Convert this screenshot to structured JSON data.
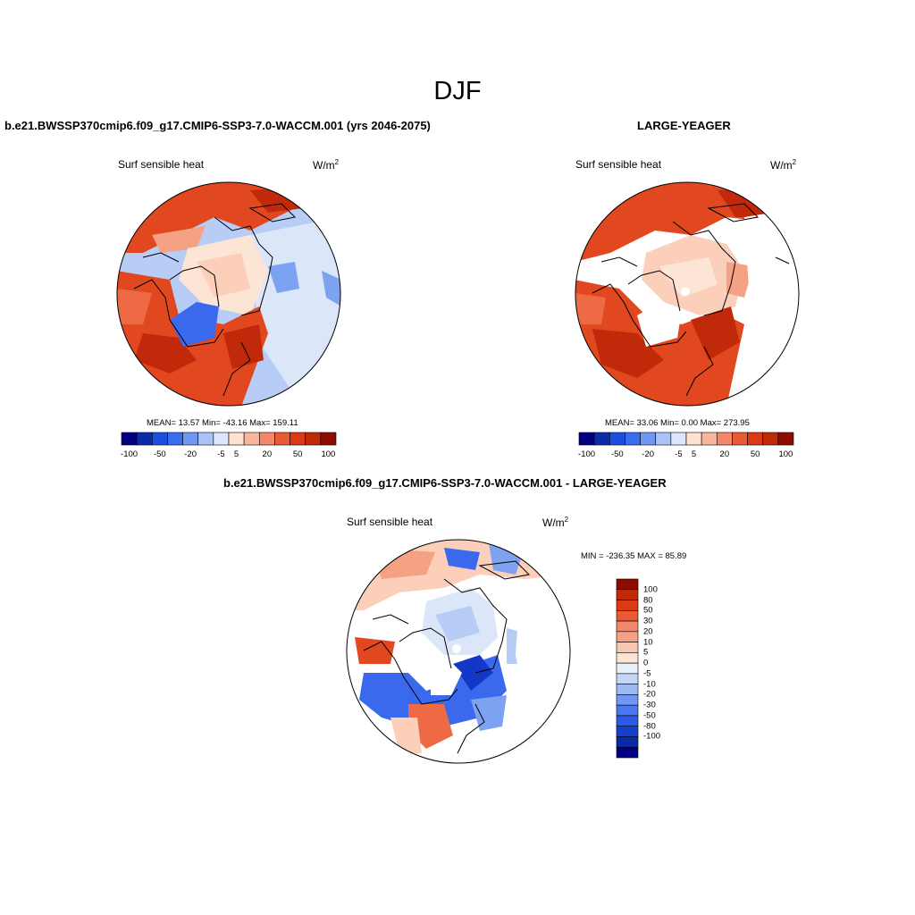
{
  "figure": {
    "title": "DJF"
  },
  "panels": [
    {
      "title": "b.e21.BWSSP370cmip6.f09_g17.CMIP6-SSP3-7.0-WACCM.001 (yrs 2046-2075)",
      "variable": "Surf sensible heat",
      "units": "W/m",
      "units_exp": "2",
      "stats": "MEAN=  13.57  Min= -43.16  Max= 159.11"
    },
    {
      "title": "LARGE-YEAGER",
      "variable": "Surf sensible heat",
      "units": "W/m",
      "units_exp": "2",
      "stats": "MEAN=  33.06  Min=   0.00  Max= 273.95"
    },
    {
      "title": "b.e21.BWSSP370cmip6.f09_g17.CMIP6-SSP3-7.0-WACCM.001 - LARGE-YEAGER",
      "variable": "Surf sensible heat",
      "units": "W/m",
      "units_exp": "2",
      "stats": "MIN = -236.35 MAX =  85.89"
    }
  ],
  "colorbar_horizontal": {
    "colors": [
      "#000080",
      "#0b2ba8",
      "#1c4ee0",
      "#3b6cf0",
      "#6f97f3",
      "#a9c3f5",
      "#dbe6f8",
      "#fde2d0",
      "#f8b79c",
      "#f2876a",
      "#eb5a37",
      "#db3a14",
      "#c02a08",
      "#8e0c00"
    ],
    "labels": [
      "-100",
      "-50",
      "-20",
      "-5",
      "5",
      "20",
      "50",
      "100"
    ]
  },
  "colorbar_vertical": {
    "colors": [
      "#8e0c00",
      "#c02a08",
      "#db3a14",
      "#eb5a37",
      "#f2876a",
      "#f5a184",
      "#f8c7b1",
      "#fde5d6",
      "#eaf0f8",
      "#c5d7f5",
      "#9dbaf2",
      "#6f97f3",
      "#4a77f0",
      "#2b5ae6",
      "#1540cc",
      "#0a2aa5",
      "#000080"
    ],
    "labels": [
      "100",
      "80",
      "50",
      "30",
      "20",
      "10",
      "5",
      "0",
      "-5",
      "-10",
      "-20",
      "-30",
      "-50",
      "-80",
      "-100"
    ]
  },
  "map_colors": {
    "dark_red": "#c0290a",
    "red": "#e2481f",
    "orange_red": "#ee6a45",
    "salmon": "#f5a184",
    "light_salmon": "#fbcfb9",
    "peach": "#fde5d6",
    "pale_blue": "#dbe6f8",
    "light_blue": "#b7cdf5",
    "mid_blue": "#7ea2f2",
    "blue": "#3a69ee",
    "dark_blue": "#1537c8"
  }
}
